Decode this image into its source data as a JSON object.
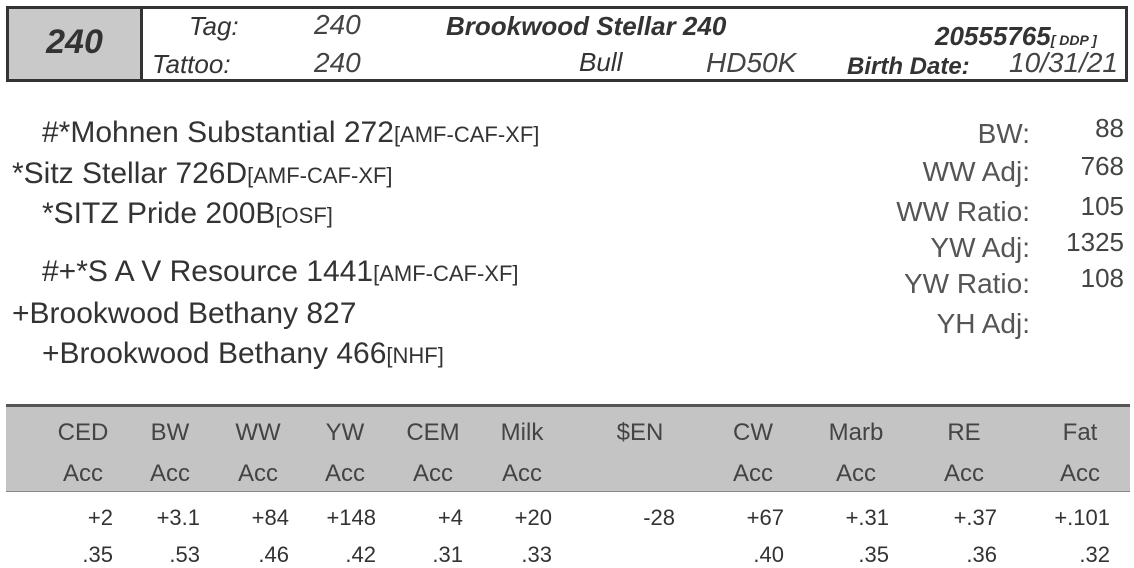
{
  "header": {
    "lot": "240",
    "tag_label": "Tag:",
    "tag_value": "240",
    "tattoo_label": "Tattoo:",
    "tattoo_value": "240",
    "name": "Brookwood Stellar 240",
    "reg": "20555765",
    "reg_suffix": "[ DDP ]",
    "sex": "Bull",
    "genomics": "HD50K",
    "birth_label": "Birth Date:",
    "birth_date": "10/31/21"
  },
  "pedigree": [
    {
      "name": "#*Mohnen Substantial 272",
      "tag": "[AMF-CAF-XF]"
    },
    {
      "name": "*Sitz Stellar 726D",
      "tag": "[AMF-CAF-XF]"
    },
    {
      "name": "*SITZ Pride 200B",
      "tag": "[OSF]"
    },
    {
      "name": "#+*S A V Resource 1441",
      "tag": "[AMF-CAF-XF]"
    },
    {
      "name": "+Brookwood Bethany 827",
      "tag": ""
    },
    {
      "name": "+Brookwood Bethany 466",
      "tag": "[NHF]"
    }
  ],
  "measures": [
    {
      "label": "BW:",
      "value": "88"
    },
    {
      "label": "WW Adj:",
      "value": "768"
    },
    {
      "label": "WW Ratio:",
      "value": "105"
    },
    {
      "label": "YW Adj:",
      "value": "1325"
    },
    {
      "label": "YW Ratio:",
      "value": "108"
    },
    {
      "label": "YH Adj:",
      "value": ""
    }
  ],
  "epd_table": {
    "headers": [
      "CED",
      "BW",
      "WW",
      "YW",
      "CEM",
      "Milk",
      "$EN",
      "CW",
      "Marb",
      "RE",
      "Fat"
    ],
    "acc_labels": [
      "Acc",
      "Acc",
      "Acc",
      "Acc",
      "Acc",
      "Acc",
      "",
      "Acc",
      "Acc",
      "Acc",
      "Acc"
    ],
    "values": [
      "+2",
      "+3.1",
      "+84",
      "+148",
      "+4",
      "+20",
      "-28",
      "+67",
      "+.31",
      "+.37",
      "+.101"
    ],
    "accuracy": [
      ".35",
      ".53",
      ".46",
      ".42",
      ".31",
      ".33",
      "",
      ".40",
      ".35",
      ".36",
      ".32"
    ]
  }
}
